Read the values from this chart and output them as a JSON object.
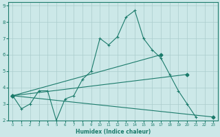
{
  "xlabel": "Humidex (Indice chaleur)",
  "bg_color": "#cce8e8",
  "grid_color": "#aacccc",
  "line_color": "#1a7a6a",
  "xlim": [
    -0.5,
    23.5
  ],
  "ylim": [
    2,
    9.2
  ],
  "xticks": [
    0,
    1,
    2,
    3,
    4,
    5,
    6,
    7,
    8,
    9,
    10,
    11,
    12,
    13,
    14,
    15,
    16,
    17,
    18,
    19,
    20,
    21,
    22,
    23
  ],
  "yticks": [
    2,
    3,
    4,
    5,
    6,
    7,
    8,
    9
  ],
  "lines": [
    {
      "x": [
        0,
        1,
        2,
        3,
        4,
        5,
        6,
        7,
        8,
        9,
        10,
        11,
        12,
        13,
        14,
        15,
        16,
        17,
        18,
        19,
        20,
        21
      ],
      "y": [
        3.5,
        2.7,
        3.0,
        3.8,
        3.8,
        2.0,
        3.3,
        3.5,
        4.5,
        5.0,
        7.0,
        6.6,
        7.1,
        8.3,
        8.7,
        7.0,
        6.3,
        5.8,
        4.8,
        3.8,
        3.0,
        2.2
      ],
      "markers": true
    },
    {
      "x": [
        0,
        17
      ],
      "y": [
        3.5,
        6.0
      ],
      "markers": false
    },
    {
      "x": [
        0,
        20
      ],
      "y": [
        3.5,
        4.8
      ],
      "markers": false
    },
    {
      "x": [
        0,
        23
      ],
      "y": [
        3.5,
        2.2
      ],
      "markers": false
    }
  ]
}
